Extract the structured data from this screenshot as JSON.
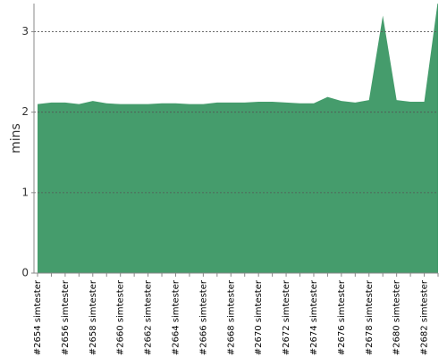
{
  "chart_data": {
    "type": "area",
    "y_label": "mins",
    "categories": [
      "#2654 simtester",
      null,
      "#2656 simtester",
      null,
      "#2658 simtester",
      null,
      "#2660 simtester",
      null,
      "#2662 simtester",
      null,
      "#2664 simtester",
      null,
      "#2666 simtester",
      null,
      "#2668 simtester",
      null,
      "#2670 simtester",
      null,
      "#2672 simtester",
      null,
      "#2674 simtester",
      null,
      "#2676 simtester",
      null,
      "#2678 simtester",
      null,
      "#2680 simtester",
      null,
      "#2682 simtester",
      null
    ],
    "values": [
      2.1,
      2.12,
      2.12,
      2.1,
      2.14,
      2.11,
      2.1,
      2.1,
      2.1,
      2.11,
      2.11,
      2.1,
      2.1,
      2.12,
      2.12,
      2.12,
      2.13,
      2.13,
      2.12,
      2.11,
      2.11,
      2.19,
      2.14,
      2.12,
      2.15,
      3.2,
      2.15,
      2.13,
      2.13,
      3.4
    ],
    "color": "#459c6c",
    "ylim": [
      0,
      3.35
    ],
    "yticks": [
      0,
      1,
      2,
      3
    ],
    "grid": true
  }
}
